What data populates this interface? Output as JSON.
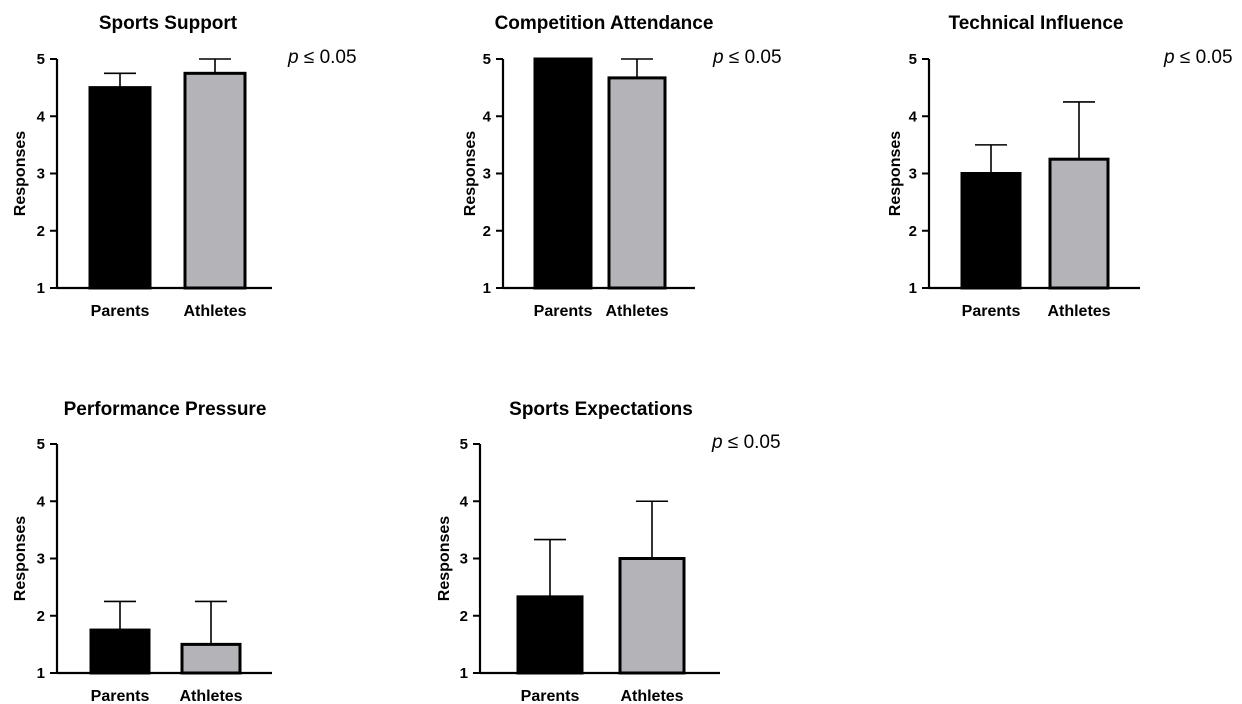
{
  "chart_data": [
    {
      "type": "bar",
      "title": "Sports Support",
      "ylabel": "Responses",
      "xlabel": "",
      "ylim": [
        1,
        5
      ],
      "yticks": [
        1,
        2,
        3,
        4,
        5
      ],
      "categories": [
        "Parents",
        "Athletes"
      ],
      "values": [
        4.5,
        4.75
      ],
      "error_upper": [
        0.25,
        0.25
      ],
      "bar_colors": [
        "#000000",
        "#b3b3b8"
      ],
      "annotation_prefix": "p",
      "annotation_text": " ≤ 0.05",
      "grid": false
    },
    {
      "type": "bar",
      "title": "Competition Attendance",
      "ylabel": "Responses",
      "xlabel": "",
      "ylim": [
        1,
        5
      ],
      "yticks": [
        1,
        2,
        3,
        4,
        5
      ],
      "categories": [
        "Parents",
        "Athletes"
      ],
      "values": [
        5.0,
        4.67
      ],
      "error_upper": [
        0.0,
        0.33
      ],
      "bar_colors": [
        "#000000",
        "#b3b3b8"
      ],
      "annotation_prefix": "p",
      "annotation_text": " ≤ 0.05",
      "grid": false
    },
    {
      "type": "bar",
      "title": "Technical Influence",
      "ylabel": "Responses",
      "xlabel": "",
      "ylim": [
        1,
        5
      ],
      "yticks": [
        1,
        2,
        3,
        4,
        5
      ],
      "categories": [
        "Parents",
        "Athletes"
      ],
      "values": [
        3.0,
        3.25
      ],
      "error_upper": [
        0.5,
        1.0
      ],
      "bar_colors": [
        "#000000",
        "#b3b3b8"
      ],
      "annotation_prefix": "p",
      "annotation_text": " ≤ 0.05",
      "grid": false
    },
    {
      "type": "bar",
      "title": "Performance Pressure",
      "ylabel": "Responses",
      "xlabel": "",
      "ylim": [
        1,
        5
      ],
      "yticks": [
        1,
        2,
        3,
        4,
        5
      ],
      "categories": [
        "Parents",
        "Athletes"
      ],
      "values": [
        1.75,
        1.5
      ],
      "error_upper": [
        0.5,
        0.75
      ],
      "bar_colors": [
        "#000000",
        "#b3b3b8"
      ],
      "annotation_prefix": "",
      "annotation_text": "",
      "grid": false
    },
    {
      "type": "bar",
      "title": "Sports Expectations",
      "ylabel": "Responses",
      "xlabel": "",
      "ylim": [
        1,
        5
      ],
      "yticks": [
        1,
        2,
        3,
        4,
        5
      ],
      "categories": [
        "Parents",
        "Athletes"
      ],
      "values": [
        2.33,
        3.0
      ],
      "error_upper": [
        1.0,
        1.0
      ],
      "bar_colors": [
        "#000000",
        "#b3b3b8"
      ],
      "annotation_prefix": "p",
      "annotation_text": " ≤ 0.05",
      "grid": false
    }
  ]
}
